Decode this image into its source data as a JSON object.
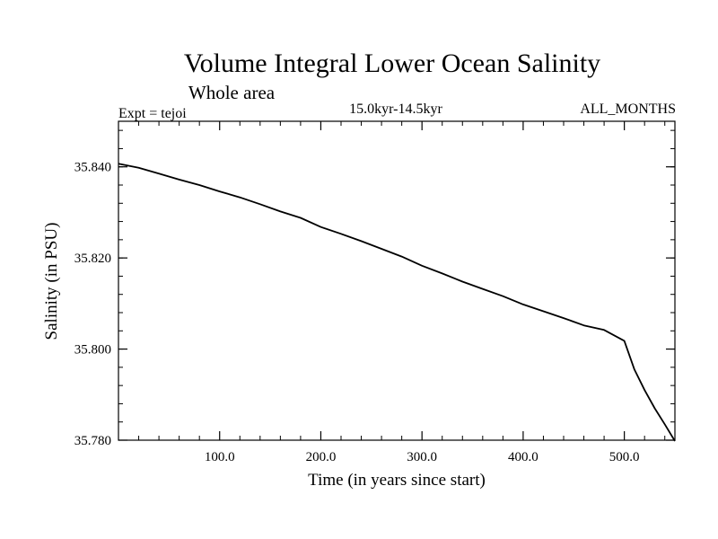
{
  "chart_data": {
    "type": "line",
    "title": "Volume Integral Lower Ocean Salinity",
    "subtitle": "Whole area",
    "left_label": "Expt = tejoi",
    "center_label": "15.0kyr-14.5kyr",
    "right_label": "ALL_MONTHS",
    "xlabel": "Time (in years since start)",
    "ylabel": "Salinity (in PSU)",
    "xlim": [
      0,
      550
    ],
    "ylim": [
      35.78,
      35.85
    ],
    "x_ticks": [
      100,
      200,
      300,
      400,
      500
    ],
    "x_tick_labels": [
      "100.0",
      "200.0",
      "300.0",
      "400.0",
      "500.0"
    ],
    "y_ticks": [
      35.78,
      35.8,
      35.82,
      35.84
    ],
    "y_tick_labels": [
      "35.780",
      "35.800",
      "35.820",
      "35.840"
    ],
    "grid": false,
    "series": [
      {
        "name": "Salinity",
        "color": "#000000",
        "x": [
          0,
          20,
          40,
          60,
          80,
          100,
          120,
          140,
          160,
          180,
          200,
          220,
          240,
          260,
          280,
          300,
          320,
          340,
          360,
          380,
          400,
          420,
          440,
          460,
          480,
          500,
          510,
          520,
          530,
          540,
          550
        ],
        "y": [
          35.8407,
          35.8398,
          35.8385,
          35.8372,
          35.836,
          35.8346,
          35.8333,
          35.8318,
          35.8302,
          35.8288,
          35.8268,
          35.8253,
          35.8237,
          35.822,
          35.8203,
          35.8183,
          35.8166,
          35.8148,
          35.8132,
          35.8116,
          35.8098,
          35.8083,
          35.8068,
          35.8052,
          35.8042,
          35.8018,
          35.7955,
          35.791,
          35.787,
          35.7835,
          35.7798
        ]
      }
    ]
  }
}
